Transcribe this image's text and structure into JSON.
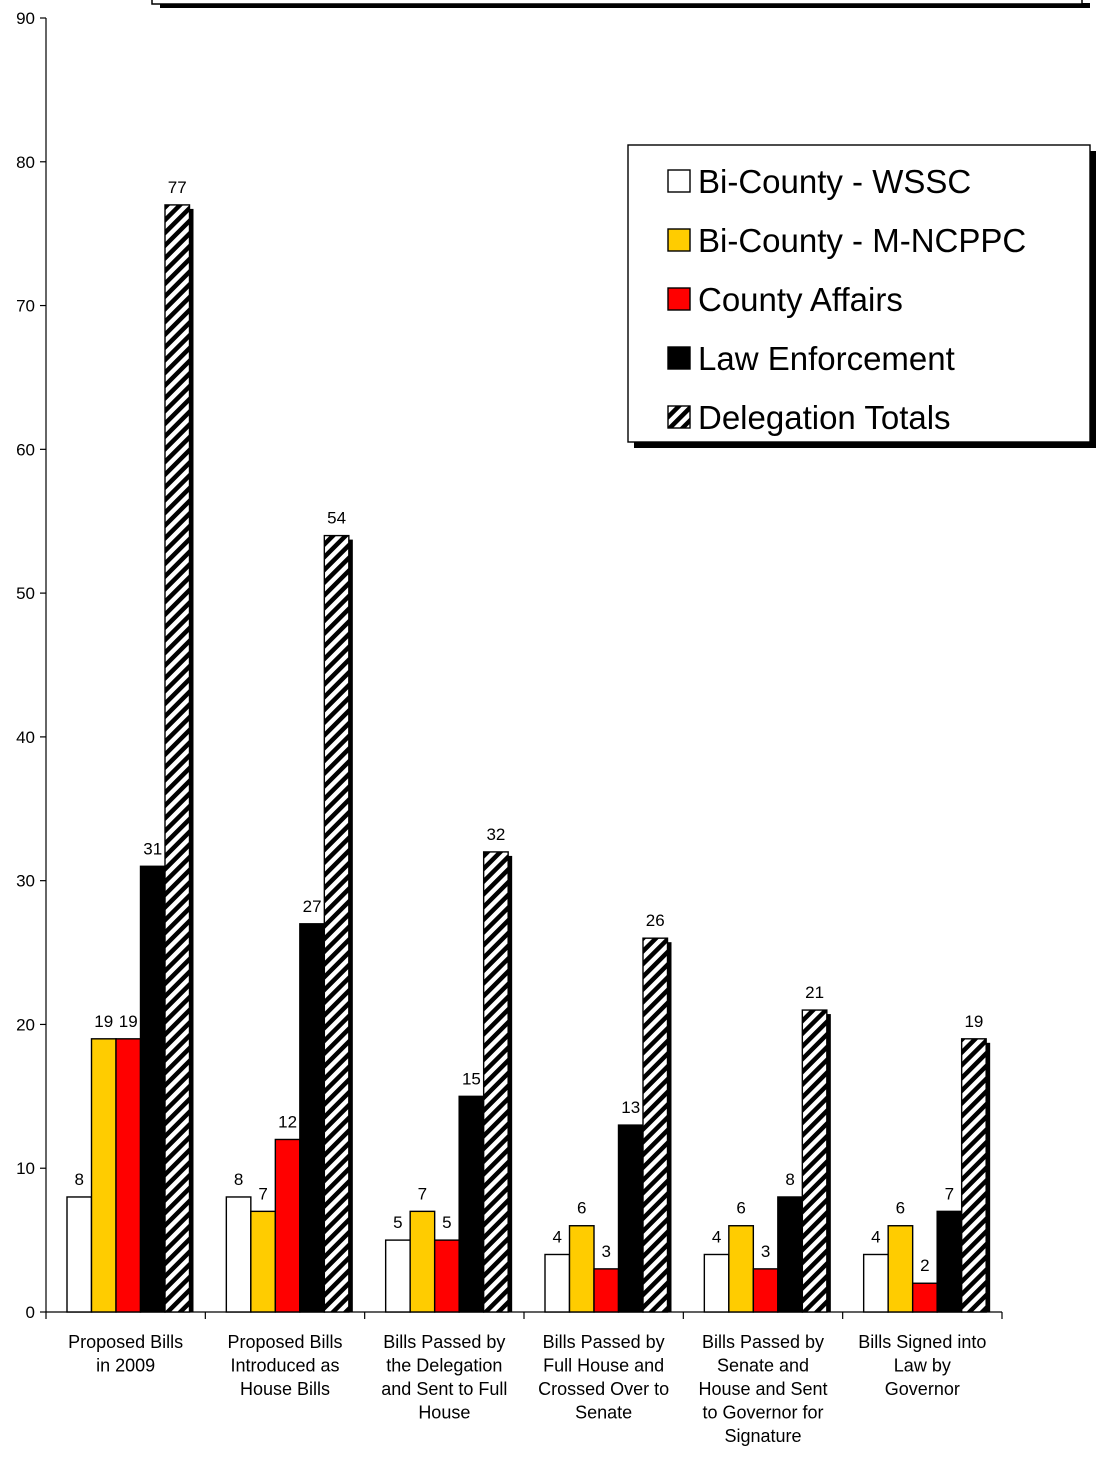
{
  "chart_data": {
    "type": "bar",
    "title": "",
    "xlabel": "",
    "ylabel": "",
    "ylim": [
      0,
      90
    ],
    "yticks": [
      0,
      10,
      20,
      30,
      40,
      50,
      60,
      70,
      80,
      90
    ],
    "grid": false,
    "legend_position": "top-right",
    "categories": [
      [
        "Proposed Bills",
        "in 2009"
      ],
      [
        "Proposed Bills",
        "Introduced as",
        "House Bills"
      ],
      [
        "Bills Passed by",
        "the Delegation",
        "and Sent to Full",
        "House"
      ],
      [
        "Bills Passed by",
        "Full House and",
        "Crossed Over to",
        "Senate"
      ],
      [
        "Bills Passed by",
        "Senate and",
        "House and Sent",
        "to Governor for",
        "Signature"
      ],
      [
        "Bills Signed into",
        "Law by",
        "Governor"
      ]
    ],
    "series": [
      {
        "name": "Bi-County - WSSC",
        "color": "#ffffff",
        "pattern": "solid",
        "values": [
          8,
          8,
          5,
          4,
          4,
          4
        ]
      },
      {
        "name": "Bi-County - M-NCPPC",
        "color": "#ffcc00",
        "pattern": "solid",
        "values": [
          19,
          7,
          7,
          6,
          6,
          6
        ]
      },
      {
        "name": "County Affairs",
        "color": "#ff0000",
        "pattern": "solid",
        "values": [
          19,
          12,
          5,
          3,
          3,
          2
        ]
      },
      {
        "name": "Law Enforcement",
        "color": "#000000",
        "pattern": "solid",
        "values": [
          31,
          27,
          15,
          13,
          8,
          7
        ]
      },
      {
        "name": "Delegation Totals",
        "color": "#ffffff",
        "pattern": "diagonal-hatch",
        "values": [
          77,
          54,
          32,
          26,
          21,
          19
        ]
      }
    ]
  }
}
